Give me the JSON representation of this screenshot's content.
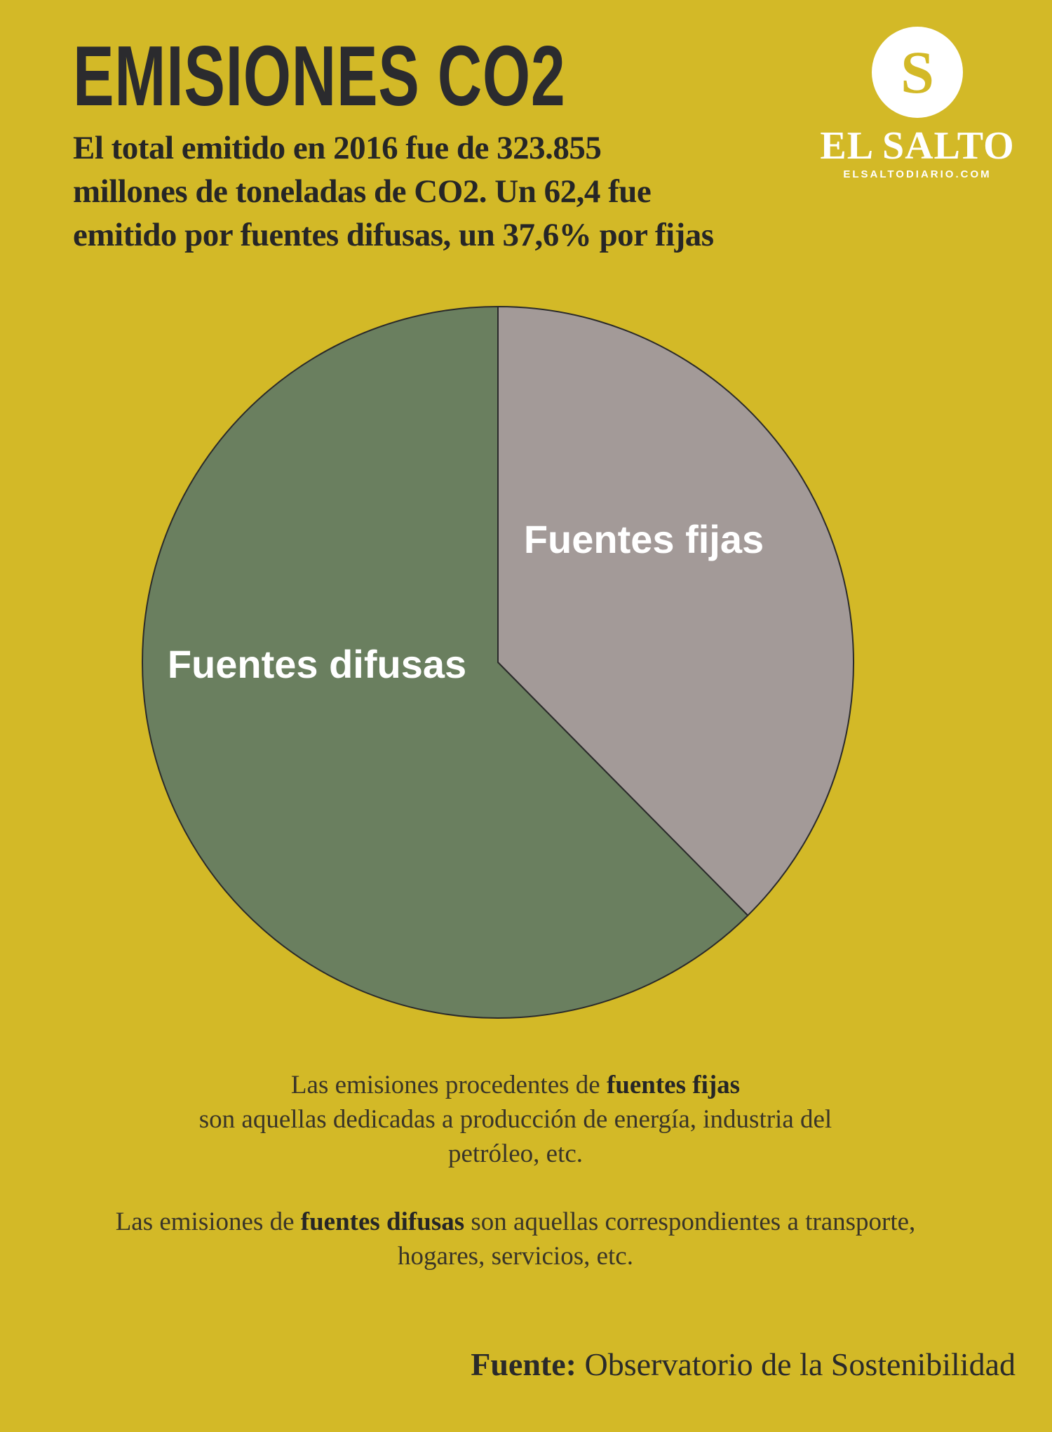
{
  "header": {
    "title": "EMISIONES CO2",
    "subtitle_lines": [
      "El total emitido en 2016 fue de 323.855",
      "millones de toneladas de CO2. Un 62,4 fue",
      "emitido por fuentes difusas, un 37,6% por fijas"
    ]
  },
  "logo": {
    "letter": "S",
    "name": "EL SALTO",
    "url": "ELSALTODIARIO.COM"
  },
  "chart_data": {
    "type": "pie",
    "title": "EMISIONES CO2",
    "slices": [
      {
        "label": "Fuentes fijas",
        "value": 37.6,
        "color": "#a39a98"
      },
      {
        "label": "Fuentes difusas",
        "value": 62.4,
        "color": "#6a7f5f"
      }
    ],
    "start": "top",
    "direction": "clockwise"
  },
  "notes": {
    "p1_pre": "Las emisiones procedentes de ",
    "p1_bold": "fuentes fijas",
    "p1_post": "son aquellas dedicadas a producción de energía, industria del petróleo, etc.",
    "p2_pre": "Las emisiones de ",
    "p2_bold": "fuentes difusas",
    "p2_post": " son aquellas correspondientes a transporte, hogares, servicios, etc."
  },
  "source": {
    "label": "Fuente:",
    "text": " Observatorio de la Sostenibilidad"
  }
}
